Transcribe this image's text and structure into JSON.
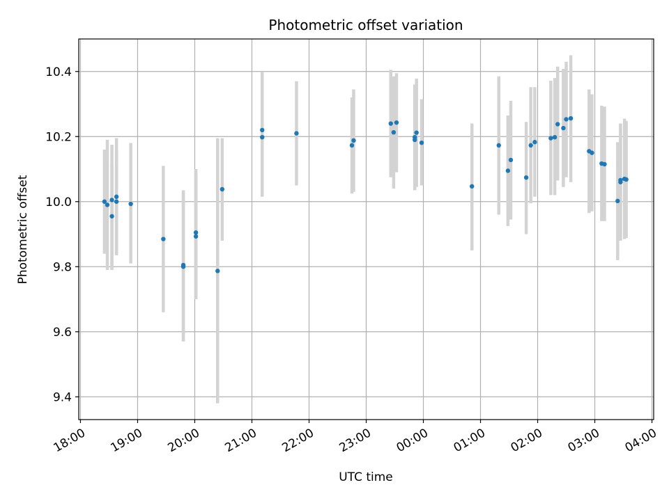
{
  "chart_data": {
    "type": "scatter",
    "title": "Photometric offset variation",
    "xlabel": "UTC time",
    "ylabel": "Photometric offset",
    "x_range_hours": [
      17.97,
      28.03
    ],
    "x_ticks": [
      {
        "h": 18,
        "label": "18:00"
      },
      {
        "h": 19,
        "label": "19:00"
      },
      {
        "h": 20,
        "label": "20:00"
      },
      {
        "h": 21,
        "label": "21:00"
      },
      {
        "h": 22,
        "label": "22:00"
      },
      {
        "h": 23,
        "label": "23:00"
      },
      {
        "h": 24,
        "label": "00:00"
      },
      {
        "h": 25,
        "label": "01:00"
      },
      {
        "h": 26,
        "label": "02:00"
      },
      {
        "h": 27,
        "label": "03:00"
      },
      {
        "h": 28,
        "label": "04:00"
      }
    ],
    "ylim": [
      9.33,
      10.5
    ],
    "y_ticks": [
      {
        "v": 9.4,
        "label": "9.4"
      },
      {
        "v": 9.6,
        "label": "9.6"
      },
      {
        "v": 9.8,
        "label": "9.8"
      },
      {
        "v": 10.0,
        "label": "10.0"
      },
      {
        "v": 10.2,
        "label": "10.2"
      },
      {
        "v": 10.4,
        "label": "10.4"
      }
    ],
    "grid": true,
    "colors": {
      "marker": "#1f77b4",
      "errorbar": "#d3d3d3",
      "grid": "#b0b0b0"
    },
    "points": [
      {
        "t": 18.42,
        "y": 10.0,
        "lo": 9.84,
        "hi": 10.16
      },
      {
        "t": 18.47,
        "y": 9.99,
        "lo": 9.79,
        "hi": 10.19
      },
      {
        "t": 18.55,
        "y": 10.005,
        "lo": 9.8,
        "hi": 10.115
      },
      {
        "t": 18.55,
        "y": 9.955,
        "lo": 9.79,
        "hi": 10.175
      },
      {
        "t": 18.63,
        "y": 10.015,
        "lo": 9.835,
        "hi": 10.195
      },
      {
        "t": 18.63,
        "y": 10.0,
        "lo": 9.84,
        "hi": 10.16
      },
      {
        "t": 18.88,
        "y": 9.993,
        "lo": 9.81,
        "hi": 10.18
      },
      {
        "t": 19.45,
        "y": 9.885,
        "lo": 9.66,
        "hi": 10.11
      },
      {
        "t": 19.8,
        "y": 9.805,
        "lo": 9.58,
        "hi": 10.035
      },
      {
        "t": 19.8,
        "y": 9.8,
        "lo": 9.57,
        "hi": 10.03
      },
      {
        "t": 20.02,
        "y": 9.905,
        "lo": 9.7,
        "hi": 10.1
      },
      {
        "t": 20.02,
        "y": 9.893,
        "lo": 9.7,
        "hi": 10.085
      },
      {
        "t": 20.4,
        "y": 9.787,
        "lo": 9.38,
        "hi": 10.195
      },
      {
        "t": 20.48,
        "y": 10.038,
        "lo": 9.88,
        "hi": 10.195
      },
      {
        "t": 21.18,
        "y": 10.22,
        "lo": 10.04,
        "hi": 10.4
      },
      {
        "t": 21.18,
        "y": 10.198,
        "lo": 10.015,
        "hi": 10.38
      },
      {
        "t": 21.78,
        "y": 10.21,
        "lo": 10.05,
        "hi": 10.37
      },
      {
        "t": 22.75,
        "y": 10.173,
        "lo": 10.025,
        "hi": 10.32
      },
      {
        "t": 22.78,
        "y": 10.188,
        "lo": 10.03,
        "hi": 10.345
      },
      {
        "t": 23.43,
        "y": 10.24,
        "lo": 10.075,
        "hi": 10.405
      },
      {
        "t": 23.48,
        "y": 10.213,
        "lo": 10.04,
        "hi": 10.385
      },
      {
        "t": 23.53,
        "y": 10.243,
        "lo": 10.09,
        "hi": 10.395
      },
      {
        "t": 23.85,
        "y": 10.198,
        "lo": 10.035,
        "hi": 10.36
      },
      {
        "t": 23.85,
        "y": 10.19,
        "lo": 10.04,
        "hi": 10.345
      },
      {
        "t": 23.88,
        "y": 10.212,
        "lo": 10.045,
        "hi": 10.378
      },
      {
        "t": 23.97,
        "y": 10.181,
        "lo": 10.05,
        "hi": 10.315
      },
      {
        "t": 24.85,
        "y": 10.047,
        "lo": 9.85,
        "hi": 10.24
      },
      {
        "t": 25.32,
        "y": 10.173,
        "lo": 9.96,
        "hi": 10.385
      },
      {
        "t": 25.48,
        "y": 10.095,
        "lo": 9.925,
        "hi": 10.265
      },
      {
        "t": 25.53,
        "y": 10.128,
        "lo": 9.945,
        "hi": 10.31
      },
      {
        "t": 25.8,
        "y": 10.074,
        "lo": 9.9,
        "hi": 10.245
      },
      {
        "t": 25.88,
        "y": 10.173,
        "lo": 9.995,
        "hi": 10.352
      },
      {
        "t": 25.95,
        "y": 10.183,
        "lo": 10.015,
        "hi": 10.352
      },
      {
        "t": 26.23,
        "y": 10.195,
        "lo": 10.02,
        "hi": 10.372
      },
      {
        "t": 26.3,
        "y": 10.198,
        "lo": 10.02,
        "hi": 10.38
      },
      {
        "t": 26.35,
        "y": 10.238,
        "lo": 10.065,
        "hi": 10.415
      },
      {
        "t": 26.45,
        "y": 10.226,
        "lo": 10.045,
        "hi": 10.408
      },
      {
        "t": 26.5,
        "y": 10.253,
        "lo": 10.075,
        "hi": 10.43
      },
      {
        "t": 26.58,
        "y": 10.256,
        "lo": 10.06,
        "hi": 10.45
      },
      {
        "t": 26.9,
        "y": 10.155,
        "lo": 9.965,
        "hi": 10.345
      },
      {
        "t": 26.95,
        "y": 10.15,
        "lo": 9.97,
        "hi": 10.33
      },
      {
        "t": 27.12,
        "y": 10.117,
        "lo": 9.94,
        "hi": 10.295
      },
      {
        "t": 27.17,
        "y": 10.115,
        "lo": 9.94,
        "hi": 10.292
      },
      {
        "t": 27.4,
        "y": 10.002,
        "lo": 9.82,
        "hi": 10.183
      },
      {
        "t": 27.45,
        "y": 10.066,
        "lo": 9.89,
        "hi": 10.24
      },
      {
        "t": 27.45,
        "y": 10.06,
        "lo": 9.88,
        "hi": 10.24
      },
      {
        "t": 27.52,
        "y": 10.07,
        "lo": 9.885,
        "hi": 10.255
      },
      {
        "t": 27.55,
        "y": 10.068,
        "lo": 9.888,
        "hi": 10.248
      }
    ]
  }
}
